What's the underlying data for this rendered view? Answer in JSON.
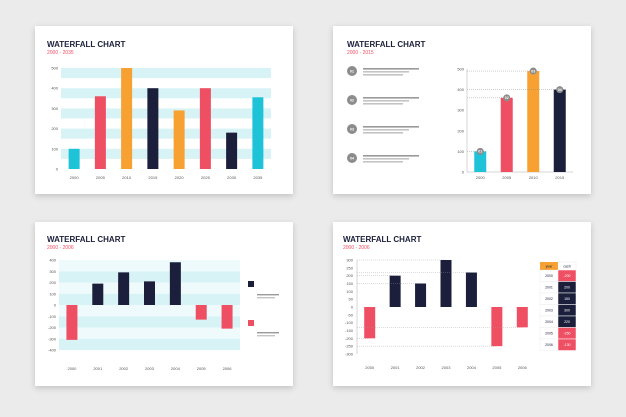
{
  "colors": {
    "navy": "#1b1f3b",
    "red": "#ef4f63",
    "cyan": "#1ec3d8",
    "orange": "#f7a133",
    "stripe": "#d8f3f6",
    "step_gray": "#8c8c8c",
    "table_header": "#f7a133",
    "table_cash": "#1b1f3b",
    "table_row_red": "#ef4f63",
    "table_row_navy": "#1b1f3b"
  },
  "chart_data": [
    {
      "type": "bar",
      "title": "WATERFALL CHART",
      "subtitle": "2000 - 2035",
      "categories": [
        "2000",
        "2005",
        "2010",
        "2015",
        "2020",
        "2025",
        "2030",
        "2035"
      ],
      "values": [
        100,
        360,
        500,
        400,
        290,
        400,
        180,
        355
      ],
      "bar_colors": [
        "#1ec3d8",
        "#ef4f63",
        "#f7a133",
        "#1b1f3b",
        "#f7a133",
        "#ef4f63",
        "#1b1f3b",
        "#1ec3d8"
      ],
      "ylim": [
        0,
        500
      ],
      "yticks": [
        0,
        100,
        200,
        300,
        400,
        500
      ],
      "grid": "striped"
    },
    {
      "type": "bar",
      "title": "WATERFALL CHART",
      "subtitle": "2000 - 2015",
      "categories": [
        "2000",
        "2005",
        "2010",
        "2015"
      ],
      "values": [
        100,
        360,
        490,
        400
      ],
      "bar_colors": [
        "#1ec3d8",
        "#ef4f63",
        "#f7a133",
        "#1b1f3b"
      ],
      "ylim": [
        0,
        500
      ],
      "yticks": [
        0,
        100,
        200,
        300,
        400,
        500
      ],
      "steps": [
        "01",
        "02",
        "03",
        "04"
      ],
      "grid": "dotted"
    },
    {
      "type": "bar",
      "title": "WATERFALL CHART",
      "subtitle": "2000 - 2006",
      "categories": [
        "2000",
        "2001",
        "2002",
        "2003",
        "2004",
        "2005",
        "2006"
      ],
      "values": [
        -310,
        190,
        290,
        210,
        380,
        -130,
        -210
      ],
      "ylim": [
        -400,
        400
      ],
      "yticks": [
        400,
        300,
        200,
        100,
        0,
        -100,
        -200,
        -300,
        -400
      ],
      "grid": "striped"
    },
    {
      "type": "bar",
      "title": "WATERFALL CHART",
      "subtitle": "2000 - 2006",
      "categories": [
        "2000",
        "2001",
        "2002",
        "2003",
        "2004",
        "2005",
        "2006"
      ],
      "values": [
        -200,
        200,
        150,
        300,
        220,
        -250,
        -130
      ],
      "ylim": [
        -300,
        300
      ],
      "yticks": [
        300,
        250,
        200,
        150,
        100,
        50,
        0,
        -50,
        -100,
        -150,
        -200,
        -250,
        -300
      ],
      "grid": "dotted",
      "table": {
        "headers": [
          "year",
          "cash"
        ],
        "rows": [
          {
            "year": "2000",
            "cash": "-200"
          },
          {
            "year": "2001",
            "cash": "200"
          },
          {
            "year": "2002",
            "cash": "150"
          },
          {
            "year": "2003",
            "cash": "300"
          },
          {
            "year": "2004",
            "cash": "220"
          },
          {
            "year": "2005",
            "cash": "-250"
          },
          {
            "year": "2006",
            "cash": "-130"
          }
        ]
      }
    }
  ]
}
